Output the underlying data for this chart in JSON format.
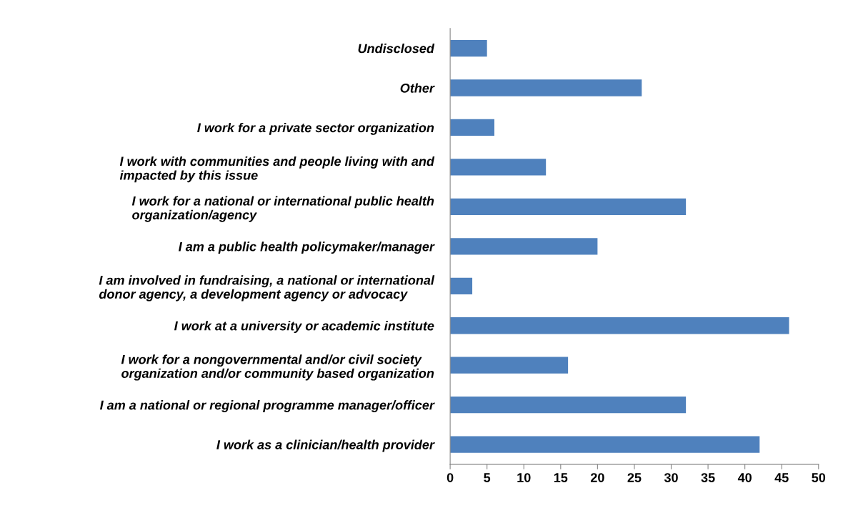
{
  "chart_data": {
    "type": "bar",
    "orientation": "horizontal",
    "categories": [
      "Undisclosed",
      "Other",
      "I work for a private sector organization",
      "I work with communities and people living with and\nimpacted by this issue",
      "I work for a national or international public health\norganization/agency",
      "I am a public health policymaker/manager",
      "I am involved in fundraising, a national or international\ndonor agency, a development agency or advocacy",
      "I work at a university or academic institute",
      "I work for a nongovernmental and/or civil society\norganization and/or community based organization",
      "I am a national or regional programme manager/officer",
      "I work as a clinician/health provider"
    ],
    "values": [
      5,
      26,
      6,
      13,
      32,
      20,
      3,
      46,
      16,
      32,
      42
    ],
    "color": "#4f81bd",
    "xlim": [
      0,
      50
    ],
    "xticks": [
      0,
      5,
      10,
      15,
      20,
      25,
      30,
      35,
      40,
      45,
      50
    ],
    "grid": false
  }
}
